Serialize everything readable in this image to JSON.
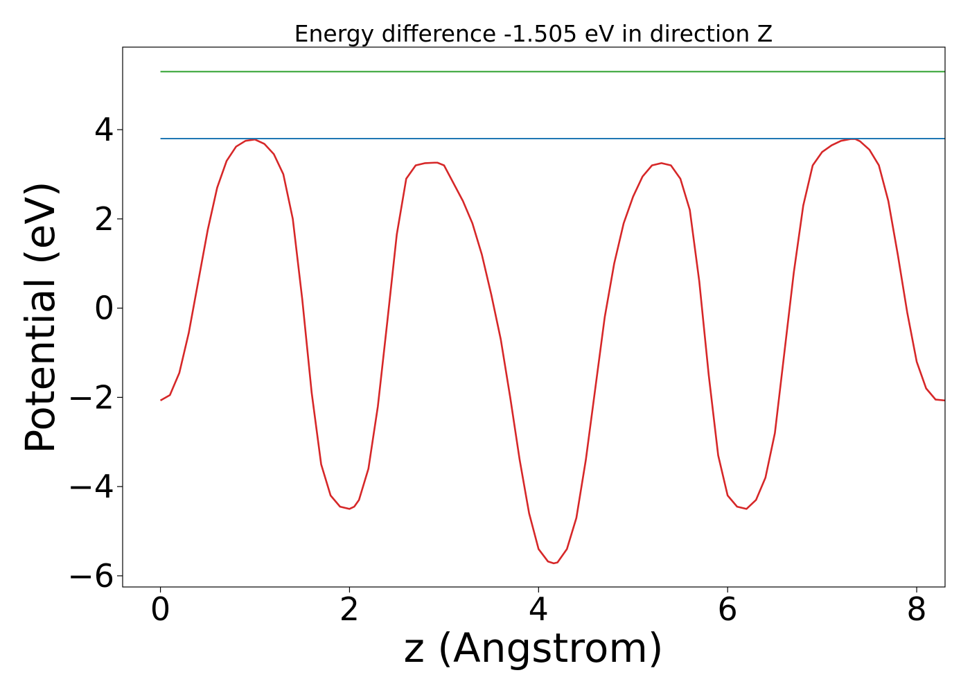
{
  "chart_data": {
    "type": "line",
    "title": "Energy difference -1.505 eV in direction Z",
    "xlabel": "z (Angstrom)",
    "ylabel": "Potential (eV)",
    "xlim": [
      -0.4,
      8.3
    ],
    "ylim": [
      -6.25,
      5.85
    ],
    "xticks": [
      0,
      2,
      4,
      6,
      8
    ],
    "xtick_labels": [
      "0",
      "2",
      "4",
      "6",
      "8"
    ],
    "yticks": [
      -6,
      -4,
      -2,
      0,
      2,
      4
    ],
    "ytick_labels": [
      "−6",
      "−4",
      "−2",
      "0",
      "2",
      "4"
    ],
    "grid": false,
    "legend": "none",
    "series": [
      {
        "color": "#d62728",
        "x": [
          0.0,
          0.1,
          0.2,
          0.3,
          0.4,
          0.5,
          0.6,
          0.7,
          0.8,
          0.9,
          1.0,
          1.1,
          1.2,
          1.3,
          1.4,
          1.5,
          1.6,
          1.7,
          1.8,
          1.9,
          2.0,
          2.05,
          2.1,
          2.2,
          2.3,
          2.4,
          2.5,
          2.6,
          2.7,
          2.8,
          2.9,
          2.93,
          3.0,
          3.1,
          3.2,
          3.3,
          3.4,
          3.5,
          3.6,
          3.7,
          3.8,
          3.9,
          4.0,
          4.1,
          4.16,
          4.2,
          4.3,
          4.4,
          4.5,
          4.6,
          4.7,
          4.8,
          4.9,
          5.0,
          5.1,
          5.2,
          5.3,
          5.4,
          5.5,
          5.6,
          5.7,
          5.8,
          5.9,
          6.0,
          6.1,
          6.2,
          6.3,
          6.4,
          6.5,
          6.6,
          6.7,
          6.8,
          6.9,
          7.0,
          7.1,
          7.2,
          7.3,
          7.35,
          7.4,
          7.5,
          7.6,
          7.7,
          7.8,
          7.9,
          8.0,
          8.1,
          8.2,
          8.3
        ],
        "values": [
          -2.07,
          -1.95,
          -1.45,
          -0.55,
          0.6,
          1.75,
          2.7,
          3.3,
          3.62,
          3.75,
          3.78,
          3.68,
          3.45,
          3.0,
          2.0,
          0.2,
          -1.9,
          -3.5,
          -4.2,
          -4.45,
          -4.5,
          -4.45,
          -4.3,
          -3.6,
          -2.2,
          -0.3,
          1.65,
          2.9,
          3.2,
          3.25,
          3.26,
          3.26,
          3.2,
          2.8,
          2.4,
          1.9,
          1.2,
          0.3,
          -0.7,
          -2.0,
          -3.4,
          -4.6,
          -5.4,
          -5.68,
          -5.72,
          -5.7,
          -5.4,
          -4.7,
          -3.4,
          -1.8,
          -0.2,
          1.0,
          1.9,
          2.5,
          2.95,
          3.2,
          3.25,
          3.2,
          2.9,
          2.2,
          0.6,
          -1.5,
          -3.3,
          -4.2,
          -4.45,
          -4.5,
          -4.3,
          -3.8,
          -2.8,
          -1.0,
          0.8,
          2.3,
          3.2,
          3.5,
          3.65,
          3.75,
          3.79,
          3.79,
          3.74,
          3.55,
          3.2,
          2.4,
          1.2,
          -0.1,
          -1.2,
          -1.8,
          -2.05,
          -2.07
        ]
      },
      {
        "color": "#1f77b4",
        "x": [
          0.0,
          8.3
        ],
        "values": [
          3.8,
          3.8
        ]
      },
      {
        "color": "#2ca02c",
        "x": [
          0.0,
          8.3
        ],
        "values": [
          5.3,
          5.3
        ]
      }
    ]
  }
}
